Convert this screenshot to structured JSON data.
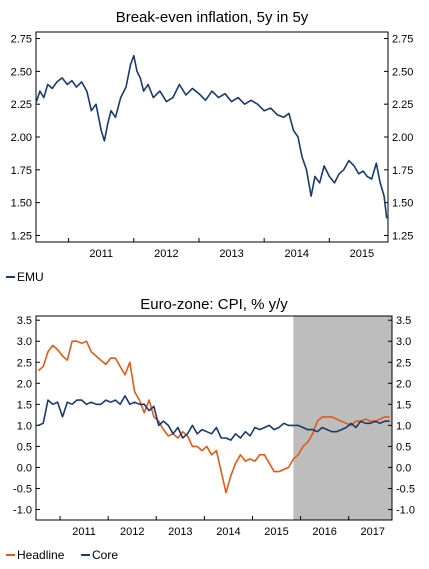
{
  "chart_data": [
    {
      "type": "line",
      "title": "Break-even inflation, 5y in 5y",
      "x_ticks": [
        "2011",
        "2012",
        "2013",
        "2014",
        "2015"
      ],
      "xlim": [
        2010.5,
        2015.9
      ],
      "ylim": [
        1.2,
        2.8
      ],
      "y_ticks": [
        "1.25",
        "1.50",
        "1.75",
        "2.00",
        "2.25",
        "2.50",
        "2.75"
      ],
      "y_tick_values": [
        1.25,
        1.5,
        1.75,
        2.0,
        2.25,
        2.5,
        2.75
      ],
      "legend_position": "bottom-left",
      "colors": {
        "EMU": "#1b3a6b"
      },
      "series": [
        {
          "name": "EMU",
          "x": [
            2010.5,
            2010.56,
            2010.62,
            2010.68,
            2010.75,
            2010.82,
            2010.9,
            2010.98,
            2011.05,
            2011.12,
            2011.2,
            2011.28,
            2011.35,
            2011.42,
            2011.5,
            2011.55,
            2011.6,
            2011.65,
            2011.72,
            2011.8,
            2011.88,
            2011.95,
            2012.0,
            2012.05,
            2012.1,
            2012.15,
            2012.22,
            2012.3,
            2012.4,
            2012.5,
            2012.6,
            2012.7,
            2012.8,
            2012.9,
            2013.0,
            2013.1,
            2013.2,
            2013.3,
            2013.4,
            2013.5,
            2013.6,
            2013.7,
            2013.8,
            2013.9,
            2014.0,
            2014.1,
            2014.2,
            2014.3,
            2014.38,
            2014.45,
            2014.52,
            2014.58,
            2014.65,
            2014.72,
            2014.78,
            2014.85,
            2014.92,
            2015.0,
            2015.08,
            2015.15,
            2015.22,
            2015.3,
            2015.38,
            2015.45,
            2015.52,
            2015.58,
            2015.65,
            2015.72,
            2015.78,
            2015.84,
            2015.88
          ],
          "values": [
            2.26,
            2.35,
            2.3,
            2.4,
            2.37,
            2.42,
            2.45,
            2.4,
            2.43,
            2.38,
            2.42,
            2.35,
            2.2,
            2.25,
            2.05,
            1.97,
            2.1,
            2.2,
            2.15,
            2.3,
            2.38,
            2.55,
            2.62,
            2.5,
            2.45,
            2.35,
            2.4,
            2.3,
            2.35,
            2.27,
            2.3,
            2.4,
            2.32,
            2.37,
            2.33,
            2.28,
            2.35,
            2.3,
            2.33,
            2.27,
            2.3,
            2.25,
            2.28,
            2.25,
            2.2,
            2.22,
            2.17,
            2.15,
            2.18,
            2.05,
            2.0,
            1.85,
            1.75,
            1.55,
            1.7,
            1.65,
            1.78,
            1.7,
            1.65,
            1.72,
            1.75,
            1.82,
            1.78,
            1.72,
            1.74,
            1.7,
            1.68,
            1.8,
            1.65,
            1.55,
            1.38
          ]
        }
      ]
    },
    {
      "type": "line",
      "title": "Euro-zone: CPI, % y/y",
      "x_ticks": [
        "2011",
        "2012",
        "2013",
        "2014",
        "2015",
        "2016",
        "2017"
      ],
      "xlim": [
        2010.5,
        2017.9
      ],
      "ylim": [
        -1.25,
        3.6
      ],
      "y_ticks": [
        "-1.0",
        "-0.5",
        "0.0",
        "0.5",
        "1.0",
        "1.5",
        "2.0",
        "2.5",
        "3.0",
        "3.5"
      ],
      "y_tick_values": [
        -1.0,
        -0.5,
        0.0,
        0.5,
        1.0,
        1.5,
        2.0,
        2.5,
        3.0,
        3.5
      ],
      "shaded_region": [
        2015.85,
        2017.9
      ],
      "legend_position": "bottom-left",
      "colors": {
        "Headline": "#e05a1a",
        "Core": "#1b3a6b",
        "shade": "#bdbdbd"
      },
      "series": [
        {
          "name": "Headline",
          "x": [
            2010.55,
            2010.65,
            2010.75,
            2010.85,
            2010.95,
            2011.05,
            2011.15,
            2011.25,
            2011.35,
            2011.45,
            2011.55,
            2011.65,
            2011.75,
            2011.85,
            2011.95,
            2012.05,
            2012.15,
            2012.25,
            2012.35,
            2012.45,
            2012.55,
            2012.65,
            2012.75,
            2012.85,
            2012.95,
            2013.05,
            2013.15,
            2013.25,
            2013.35,
            2013.45,
            2013.55,
            2013.65,
            2013.75,
            2013.85,
            2013.95,
            2014.05,
            2014.15,
            2014.25,
            2014.35,
            2014.45,
            2014.55,
            2014.65,
            2014.75,
            2014.85,
            2014.95,
            2015.05,
            2015.15,
            2015.25,
            2015.35,
            2015.45,
            2015.55,
            2015.65,
            2015.75,
            2015.85,
            2015.95,
            2016.05,
            2016.15,
            2016.25,
            2016.35,
            2016.45,
            2016.55,
            2016.65,
            2016.75,
            2016.85,
            2016.95,
            2017.05,
            2017.15,
            2017.25,
            2017.35,
            2017.45,
            2017.55,
            2017.65,
            2017.75,
            2017.85
          ],
          "values": [
            2.3,
            2.4,
            2.75,
            2.9,
            2.8,
            2.65,
            2.55,
            3.0,
            3.0,
            2.95,
            3.0,
            2.75,
            2.65,
            2.55,
            2.45,
            2.6,
            2.6,
            2.4,
            2.2,
            2.5,
            1.8,
            1.6,
            1.3,
            1.6,
            1.2,
            1.1,
            0.9,
            0.75,
            0.8,
            0.7,
            0.85,
            0.75,
            0.5,
            0.5,
            0.4,
            0.5,
            0.3,
            0.4,
            -0.1,
            -0.6,
            -0.2,
            0.1,
            0.3,
            0.15,
            0.2,
            0.15,
            0.3,
            0.3,
            0.1,
            -0.1,
            -0.1,
            -0.05,
            0.0,
            0.2,
            0.3,
            0.5,
            0.6,
            0.8,
            1.1,
            1.2,
            1.2,
            1.2,
            1.15,
            1.1,
            1.05,
            1.0,
            1.1,
            1.1,
            1.15,
            1.1,
            1.1,
            1.15,
            1.2,
            1.2
          ]
        },
        {
          "name": "Core",
          "x": [
            2010.55,
            2010.65,
            2010.75,
            2010.85,
            2010.95,
            2011.05,
            2011.15,
            2011.25,
            2011.35,
            2011.45,
            2011.55,
            2011.65,
            2011.75,
            2011.85,
            2011.95,
            2012.05,
            2012.15,
            2012.25,
            2012.35,
            2012.45,
            2012.55,
            2012.65,
            2012.75,
            2012.85,
            2012.95,
            2013.05,
            2013.15,
            2013.25,
            2013.35,
            2013.45,
            2013.55,
            2013.65,
            2013.75,
            2013.85,
            2013.95,
            2014.05,
            2014.15,
            2014.25,
            2014.35,
            2014.45,
            2014.55,
            2014.65,
            2014.75,
            2014.85,
            2014.95,
            2015.05,
            2015.15,
            2015.25,
            2015.35,
            2015.45,
            2015.55,
            2015.65,
            2015.75,
            2015.85,
            2015.95,
            2016.05,
            2016.15,
            2016.25,
            2016.35,
            2016.45,
            2016.55,
            2016.65,
            2016.75,
            2016.85,
            2016.95,
            2017.05,
            2017.15,
            2017.25,
            2017.35,
            2017.45,
            2017.55,
            2017.65,
            2017.75,
            2017.85
          ],
          "values": [
            1.0,
            1.05,
            1.6,
            1.5,
            1.55,
            1.2,
            1.55,
            1.5,
            1.6,
            1.6,
            1.5,
            1.55,
            1.5,
            1.5,
            1.6,
            1.55,
            1.6,
            1.5,
            1.7,
            1.5,
            1.55,
            1.5,
            1.5,
            1.35,
            1.45,
            1.0,
            1.1,
            1.0,
            0.8,
            0.95,
            0.7,
            0.8,
            1.0,
            0.8,
            0.9,
            0.85,
            0.8,
            0.95,
            0.7,
            0.7,
            0.65,
            0.8,
            0.7,
            0.85,
            0.75,
            0.95,
            0.9,
            0.95,
            1.0,
            0.9,
            0.95,
            1.05,
            1.0,
            1.0,
            1.0,
            0.95,
            0.9,
            0.9,
            0.85,
            0.95,
            0.9,
            0.85,
            0.85,
            0.9,
            0.95,
            1.05,
            0.95,
            1.1,
            1.05,
            1.05,
            1.1,
            1.05,
            1.1,
            1.1
          ]
        }
      ]
    }
  ]
}
